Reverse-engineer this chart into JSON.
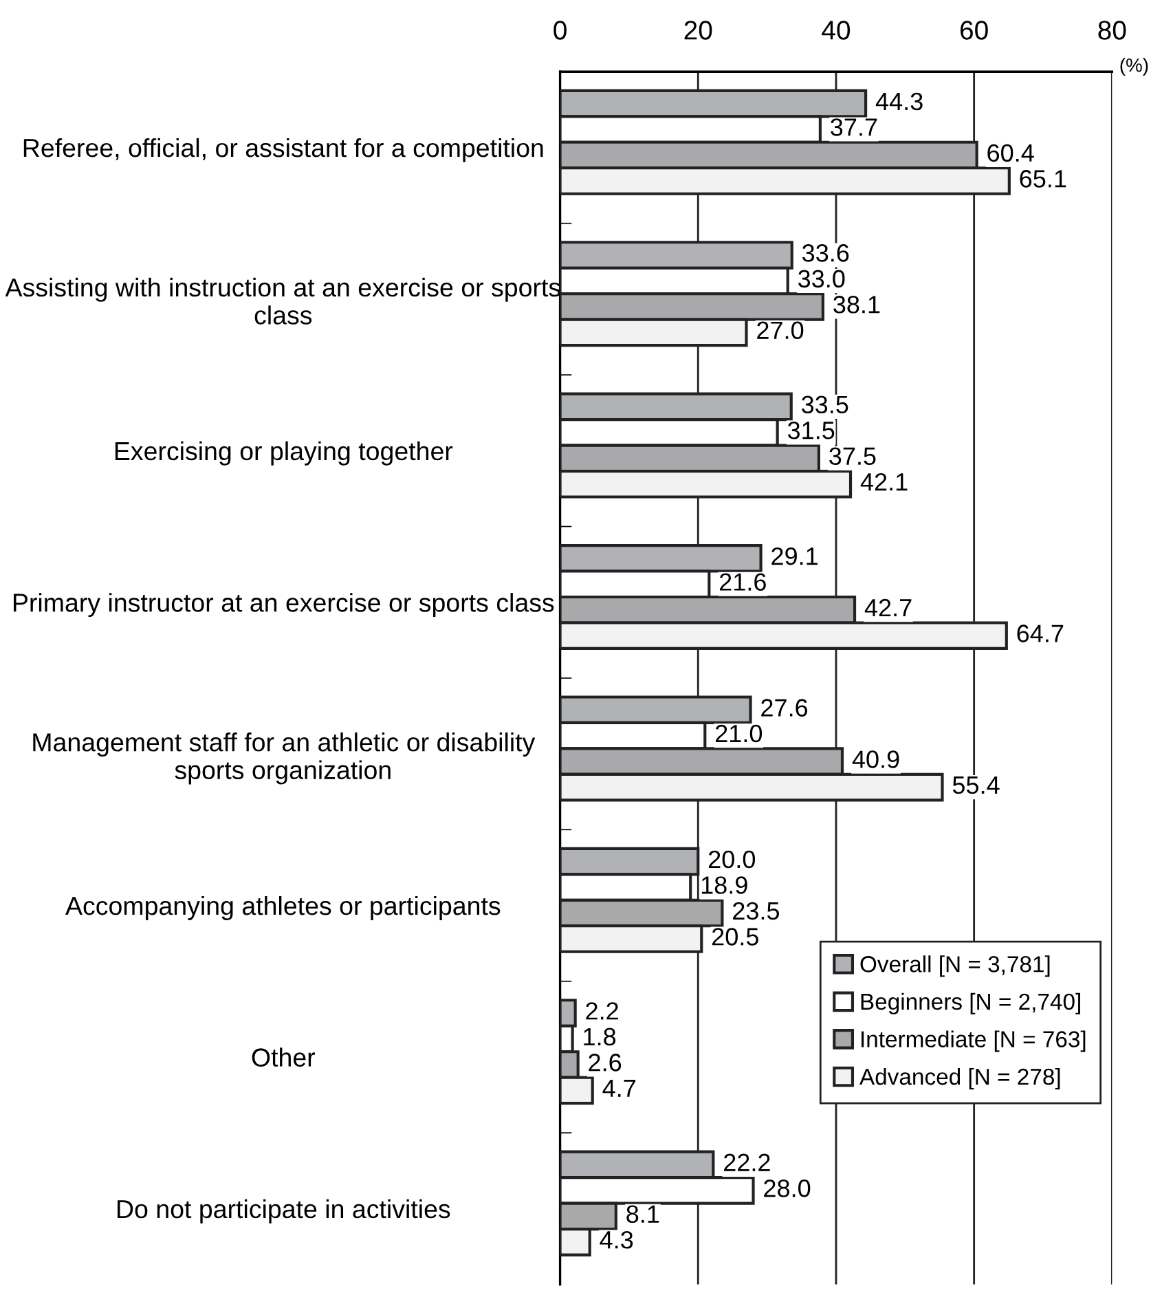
{
  "chart_data": {
    "type": "bar",
    "orientation": "horizontal",
    "xlabel": "(%)",
    "categories": [
      "Referee, official, or assistant for a competition",
      "Assisting with instruction at an exercise or sports class",
      "Exercising or playing together",
      "Primary instructor at an exercise or sports class",
      "Management staff for an athletic or disability sports organization",
      "Accompanying athletes or participants",
      "Other",
      "Do not participate in activities"
    ],
    "series": [
      {
        "name": "Overall [N = 3,781]",
        "color": "#b1b2b5",
        "values": [
          44.3,
          33.6,
          33.5,
          29.1,
          27.6,
          20.0,
          2.2,
          22.2
        ],
        "value_labels": [
          "44.3",
          "33.6",
          "33.5",
          "29.1",
          "27.6",
          "20.0",
          "2.2",
          "22.2"
        ]
      },
      {
        "name": "Beginners [N = 2,740]",
        "color": "#ffffff",
        "values": [
          37.7,
          33.0,
          31.5,
          21.6,
          21.0,
          18.9,
          1.8,
          28.0
        ],
        "value_labels": [
          "37.7",
          "33.0",
          "31.5",
          "21.6",
          "21.0",
          "18.9",
          "1.8",
          "28.0"
        ]
      },
      {
        "name": "Intermediate [N = 763]",
        "color": "#a9a9ab",
        "values": [
          60.4,
          38.1,
          37.5,
          42.7,
          40.9,
          23.5,
          2.6,
          8.1
        ],
        "value_labels": [
          "60.4",
          "38.1",
          "37.5",
          "42.7",
          "40.9",
          "23.5",
          "2.6",
          "8.1"
        ]
      },
      {
        "name": "Advanced [N = 278]",
        "color": "#f2f2f2",
        "values": [
          65.1,
          27.0,
          42.1,
          64.7,
          55.4,
          20.5,
          4.7,
          4.3
        ],
        "value_labels": [
          "65.1",
          "27.0",
          "42.1",
          "64.7",
          "55.4",
          "20.5",
          "4.7",
          "4.3"
        ]
      }
    ],
    "xlim": [
      0,
      80
    ],
    "xticks": [
      0,
      20,
      40,
      60,
      80
    ],
    "grid": "x",
    "legend": "bottom right"
  }
}
